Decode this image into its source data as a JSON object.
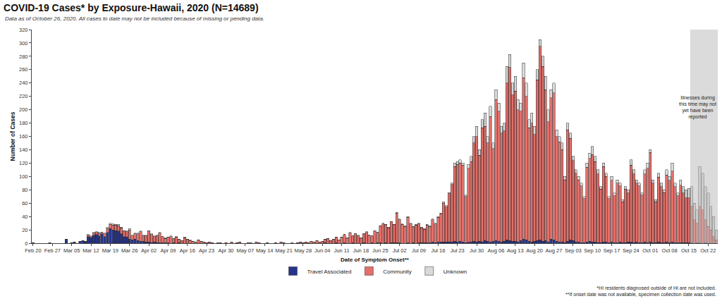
{
  "chart_data": {
    "type": "bar",
    "title": "COVID-19 Cases* by Exposure-Hawaii, 2020 (N=14689)",
    "subtitle": "Data as of October 26, 2020. All cases to date may not be included because of missing or pending data.",
    "x_label": "Date of Symptom Onset**",
    "y_label": "Number of Cases",
    "footnotes": [
      "*HI residents diagnosed outside of HI are not included.",
      "**If onset date was not available, specimen collection date was used."
    ],
    "annotation": {
      "text": "Illnesses during this time may not yet have been reported",
      "x": 239
    },
    "stacked": true,
    "grid": false,
    "legend": "bottom",
    "ylim": [
      0,
      320
    ],
    "yticks": [
      0,
      20,
      40,
      60,
      80,
      100,
      120,
      140,
      160,
      180,
      200,
      220,
      240,
      260,
      280,
      300,
      320
    ],
    "categories": [
      "Feb 20",
      null,
      null,
      null,
      null,
      null,
      null,
      "Feb 27",
      null,
      null,
      null,
      null,
      null,
      null,
      "Mar 05",
      null,
      null,
      null,
      null,
      null,
      null,
      "Mar 12",
      null,
      null,
      null,
      null,
      null,
      null,
      "Mar 19",
      null,
      null,
      null,
      null,
      null,
      null,
      "Mar 26",
      null,
      null,
      null,
      null,
      null,
      null,
      "Apr 02",
      null,
      null,
      null,
      null,
      null,
      null,
      "Apr 09",
      null,
      null,
      null,
      null,
      null,
      null,
      "Apr 16",
      null,
      null,
      null,
      null,
      null,
      null,
      "Apr 23",
      null,
      null,
      null,
      null,
      null,
      null,
      "Apr 30",
      null,
      null,
      null,
      null,
      null,
      null,
      "May 07",
      null,
      null,
      null,
      null,
      null,
      null,
      "May 14",
      null,
      null,
      null,
      null,
      null,
      null,
      "May 21",
      null,
      null,
      null,
      null,
      null,
      null,
      "May 28",
      null,
      null,
      null,
      null,
      null,
      null,
      "Jun 04",
      null,
      null,
      null,
      null,
      null,
      null,
      "Jun 11",
      null,
      null,
      null,
      null,
      null,
      null,
      "Jun 18",
      null,
      null,
      null,
      null,
      null,
      null,
      "Jun 25",
      null,
      null,
      null,
      null,
      null,
      null,
      "Jul 02",
      null,
      null,
      null,
      null,
      null,
      null,
      "Jul 09",
      null,
      null,
      null,
      null,
      null,
      null,
      "Jul 16",
      null,
      null,
      null,
      null,
      null,
      null,
      "Jul 23",
      null,
      null,
      null,
      null,
      null,
      null,
      "Jul 30",
      null,
      null,
      null,
      null,
      null,
      null,
      "Aug 06",
      null,
      null,
      null,
      null,
      null,
      null,
      "Aug 13",
      null,
      null,
      null,
      null,
      null,
      null,
      "Aug 20",
      null,
      null,
      null,
      null,
      null,
      null,
      "Aug 27",
      null,
      null,
      null,
      null,
      null,
      null,
      "Sep 03",
      null,
      null,
      null,
      null,
      null,
      null,
      "Sep 10",
      null,
      null,
      null,
      null,
      null,
      null,
      "Sep 17",
      null,
      null,
      null,
      null,
      null,
      null,
      "Sep 24",
      null,
      null,
      null,
      null,
      null,
      null,
      "Oct 01",
      null,
      null,
      null,
      null,
      null,
      null,
      "Oct 08",
      null,
      null,
      null,
      null,
      null,
      null,
      "Oct 15",
      null,
      null,
      null,
      null,
      null,
      null,
      "Oct 22",
      null,
      null,
      null
    ],
    "series": [
      {
        "name": "Travel Associated",
        "color": "#27348b",
        "values": [
          1,
          0,
          0,
          0,
          0,
          0,
          1,
          0,
          0,
          0,
          0,
          0,
          6,
          0,
          1,
          2,
          0,
          3,
          4,
          2,
          10,
          8,
          12,
          13,
          11,
          14,
          10,
          16,
          22,
          20,
          19,
          18,
          14,
          10,
          9,
          6,
          5,
          6,
          4,
          3,
          3,
          2,
          2,
          1,
          2,
          1,
          1,
          1,
          1,
          1,
          0,
          1,
          0,
          1,
          0,
          0,
          0,
          0,
          0,
          0,
          0,
          0,
          0,
          0,
          0,
          0,
          0,
          0,
          0,
          0,
          0,
          0,
          0,
          0,
          0,
          0,
          0,
          0,
          0,
          0,
          0,
          0,
          0,
          0,
          0,
          0,
          0,
          0,
          0,
          0,
          0,
          0,
          0,
          0,
          0,
          0,
          0,
          0,
          0,
          0,
          0,
          0,
          0,
          0,
          0,
          0,
          1,
          0,
          0,
          0,
          1,
          0,
          0,
          1,
          0,
          0,
          1,
          0,
          0,
          0,
          1,
          0,
          0,
          1,
          0,
          1,
          1,
          0,
          1,
          0,
          1,
          1,
          1,
          1,
          0,
          0,
          1,
          0,
          1,
          0,
          1,
          1,
          1,
          1,
          1,
          2,
          1,
          2,
          2,
          2,
          2,
          2,
          2,
          3,
          2,
          3,
          2,
          1,
          2,
          2,
          3,
          2,
          3,
          2,
          4,
          3,
          2,
          3,
          4,
          3,
          2,
          3,
          5,
          4,
          3,
          3,
          2,
          4,
          6,
          5,
          3,
          2,
          3,
          4,
          5,
          3,
          4,
          2,
          6,
          5,
          3,
          2,
          2,
          1,
          3,
          5,
          4,
          2,
          2,
          1,
          1,
          2,
          3,
          2,
          2,
          1,
          1,
          2,
          2,
          1,
          2,
          1,
          1,
          2,
          1,
          1,
          2,
          2,
          1,
          2,
          1,
          1,
          2,
          1,
          2,
          1,
          1,
          2,
          1,
          1,
          2,
          1,
          2,
          1,
          1,
          1,
          1,
          1,
          1,
          1,
          0,
          1,
          1,
          0,
          1,
          0,
          0,
          0,
          0
        ]
      },
      {
        "name": "Community",
        "color": "#e3706b",
        "values": [
          0,
          0,
          0,
          0,
          0,
          0,
          0,
          0,
          0,
          0,
          0,
          0,
          0,
          0,
          0,
          0,
          0,
          0,
          0,
          1,
          2,
          2,
          3,
          3,
          4,
          2,
          4,
          6,
          6,
          7,
          8,
          8,
          9,
          8,
          8,
          14,
          6,
          8,
          10,
          14,
          8,
          9,
          16,
          12,
          8,
          10,
          14,
          9,
          6,
          8,
          10,
          6,
          9,
          5,
          4,
          8,
          6,
          4,
          3,
          2,
          5,
          3,
          2,
          1,
          2,
          1,
          0,
          1,
          1,
          0,
          1,
          0,
          2,
          0,
          1,
          2,
          0,
          0,
          1,
          1,
          0,
          2,
          1,
          0,
          0,
          1,
          0,
          0,
          1,
          0,
          2,
          1,
          0,
          0,
          1,
          0,
          1,
          2,
          1,
          2,
          1,
          3,
          2,
          4,
          2,
          3,
          5,
          7,
          4,
          6,
          8,
          5,
          9,
          12,
          8,
          15,
          10,
          14,
          11,
          8,
          13,
          16,
          12,
          10,
          18,
          15,
          25,
          29,
          27,
          23,
          31,
          27,
          44,
          34,
          28,
          25,
          38,
          29,
          24,
          27,
          28,
          22,
          20,
          26,
          24,
          33,
          28,
          37,
          42,
          58,
          52,
          72,
          86,
          112,
          116,
          117,
          115,
          69,
          110,
          120,
          147,
          158,
          129,
          171,
          171,
          147,
          188,
          139,
          211,
          195,
          163,
          165,
          235,
          259,
          219,
          225,
          198,
          194,
          242,
          215,
          170,
          178,
          160,
          241,
          290,
          262,
          226,
          180,
          212,
          220,
          157,
          150,
          138,
          94,
          167,
          152,
          120,
          103,
          93,
          85,
          66,
          112,
          124,
          131,
          120,
          103,
          80,
          113,
          98,
          66,
          92,
          70,
          89,
          84,
          61,
          80,
          73,
          115,
          103,
          88,
          85,
          71,
          102,
          111,
          134,
          89,
          61,
          97,
          84,
          75,
          100,
          93,
          106,
          84,
          70,
          86,
          74,
          67,
          67,
          54,
          35,
          29,
          54,
          50,
          34,
          25,
          20,
          10,
          5
        ]
      },
      {
        "name": "Unknown",
        "color": "#d9d9d9",
        "values": [
          0,
          0,
          0,
          0,
          0,
          0,
          0,
          0,
          0,
          0,
          0,
          0,
          0,
          0,
          0,
          0,
          0,
          0,
          0,
          0,
          1,
          1,
          1,
          1,
          1,
          0,
          1,
          2,
          2,
          2,
          1,
          2,
          1,
          1,
          1,
          2,
          1,
          1,
          1,
          1,
          1,
          1,
          1,
          1,
          1,
          1,
          1,
          0,
          1,
          0,
          1,
          0,
          1,
          0,
          0,
          1,
          0,
          1,
          0,
          0,
          0,
          0,
          0,
          0,
          0,
          0,
          0,
          0,
          0,
          0,
          0,
          0,
          0,
          0,
          0,
          0,
          0,
          0,
          0,
          0,
          0,
          0,
          0,
          0,
          0,
          0,
          0,
          0,
          0,
          0,
          0,
          0,
          0,
          0,
          0,
          0,
          0,
          0,
          0,
          0,
          0,
          0,
          0,
          0,
          0,
          0,
          0,
          0,
          0,
          0,
          0,
          0,
          0,
          0,
          0,
          1,
          0,
          0,
          1,
          0,
          0,
          1,
          0,
          0,
          1,
          0,
          0,
          1,
          0,
          1,
          0,
          0,
          1,
          1,
          1,
          1,
          1,
          1,
          0,
          1,
          1,
          1,
          1,
          1,
          1,
          1,
          1,
          1,
          1,
          2,
          2,
          2,
          2,
          5,
          4,
          5,
          3,
          2,
          6,
          8,
          10,
          15,
          8,
          12,
          20,
          10,
          15,
          8,
          15,
          12,
          10,
          12,
          25,
          20,
          18,
          22,
          15,
          12,
          22,
          20,
          12,
          15,
          12,
          15,
          10,
          15,
          20,
          18,
          12,
          15,
          10,
          8,
          10,
          5,
          10,
          8,
          6,
          5,
          5,
          4,
          3,
          6,
          8,
          12,
          8,
          6,
          4,
          5,
          5,
          3,
          6,
          4,
          5,
          4,
          3,
          4,
          5,
          8,
          6,
          5,
          4,
          3,
          6,
          8,
          4,
          5,
          3,
          6,
          5,
          4,
          8,
          6,
          12,
          5,
          4,
          8,
          10,
          12,
          14,
          30,
          25,
          20,
          60,
          55,
          50,
          50,
          35,
          30,
          15
        ]
      }
    ]
  }
}
